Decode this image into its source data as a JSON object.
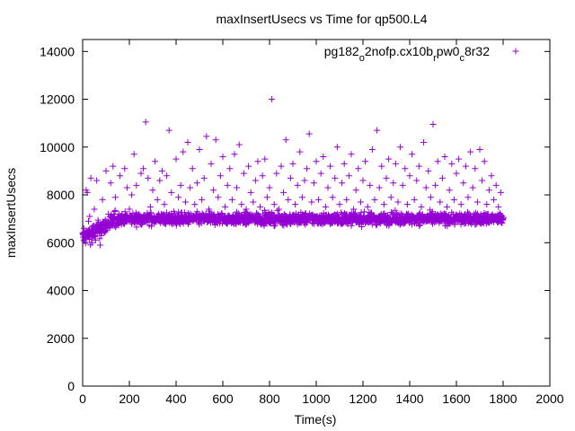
{
  "chart_data": {
    "type": "scatter",
    "title": "maxInsertUsecs vs Time for qp500.L4",
    "xlabel": "Time(s)",
    "ylabel": "maxInsertUsecs",
    "xlim": [
      0,
      2000
    ],
    "ylim": [
      0,
      14500
    ],
    "xticks": [
      0,
      200,
      400,
      600,
      800,
      1000,
      1200,
      1400,
      1600,
      1800,
      2000
    ],
    "yticks": [
      0,
      2000,
      4000,
      6000,
      8000,
      10000,
      12000,
      14000
    ],
    "grid": false,
    "legend_position": "top-right",
    "marker": "+",
    "color": "#9400d3",
    "series": [
      {
        "legend_parts": [
          {
            "text": "pg182",
            "sub": false
          },
          {
            "text": "o",
            "sub": true
          },
          {
            "text": "2nofp.cx10b",
            "sub": false
          },
          {
            "text": "r",
            "sub": true
          },
          {
            "text": "pw0",
            "sub": false
          },
          {
            "text": "c",
            "sub": true
          },
          {
            "text": "8r32",
            "sub": false
          }
        ],
        "x_range": [
          0,
          1800
        ],
        "points": [
          [
            0,
            6400
          ],
          [
            5,
            6600
          ],
          [
            10,
            6200
          ],
          [
            15,
            8200
          ],
          [
            20,
            8100
          ],
          [
            25,
            6900
          ],
          [
            30,
            7100
          ],
          [
            35,
            8700
          ],
          [
            40,
            6000
          ],
          [
            45,
            6300
          ],
          [
            50,
            7400
          ],
          [
            55,
            6100
          ],
          [
            60,
            8600
          ],
          [
            65,
            6500
          ],
          [
            70,
            6700
          ],
          [
            75,
            5900
          ],
          [
            80,
            6300
          ],
          [
            85,
            7800
          ],
          [
            90,
            6800
          ],
          [
            95,
            6500
          ],
          [
            100,
            9000
          ],
          [
            105,
            6700
          ],
          [
            110,
            7200
          ],
          [
            120,
            8500
          ],
          [
            130,
            9200
          ],
          [
            140,
            7900
          ],
          [
            150,
            7100
          ],
          [
            160,
            8800
          ],
          [
            170,
            7000
          ],
          [
            180,
            9100
          ],
          [
            190,
            8300
          ],
          [
            200,
            7400
          ],
          [
            210,
            8000
          ],
          [
            220,
            9700
          ],
          [
            230,
            8400
          ],
          [
            240,
            7200
          ],
          [
            250,
            8900
          ],
          [
            260,
            9100
          ],
          [
            270,
            11050
          ],
          [
            280,
            8700
          ],
          [
            290,
            7500
          ],
          [
            300,
            8200
          ],
          [
            310,
            9400
          ],
          [
            320,
            7800
          ],
          [
            330,
            8600
          ],
          [
            340,
            9000
          ],
          [
            350,
            7600
          ],
          [
            360,
            8800
          ],
          [
            370,
            10700
          ],
          [
            380,
            8100
          ],
          [
            390,
            7300
          ],
          [
            400,
            9500
          ],
          [
            410,
            7900
          ],
          [
            420,
            8400
          ],
          [
            430,
            9800
          ],
          [
            440,
            7700
          ],
          [
            450,
            10200
          ],
          [
            460,
            8300
          ],
          [
            470,
            9100
          ],
          [
            480,
            7600
          ],
          [
            490,
            8500
          ],
          [
            500,
            9900
          ],
          [
            510,
            7800
          ],
          [
            520,
            8700
          ],
          [
            530,
            10450
          ],
          [
            540,
            7400
          ],
          [
            550,
            9300
          ],
          [
            560,
            8200
          ],
          [
            570,
            10300
          ],
          [
            580,
            7900
          ],
          [
            590,
            8800
          ],
          [
            600,
            9600
          ],
          [
            610,
            7500
          ],
          [
            620,
            8400
          ],
          [
            630,
            9100
          ],
          [
            640,
            7800
          ],
          [
            650,
            9700
          ],
          [
            660,
            8300
          ],
          [
            670,
            10100
          ],
          [
            680,
            7600
          ],
          [
            690,
            8900
          ],
          [
            700,
            7400
          ],
          [
            710,
            9200
          ],
          [
            720,
            8100
          ],
          [
            730,
            7700
          ],
          [
            740,
            8600
          ],
          [
            750,
            9400
          ],
          [
            760,
            7500
          ],
          [
            770,
            8800
          ],
          [
            780,
            9500
          ],
          [
            790,
            7900
          ],
          [
            800,
            8300
          ],
          [
            810,
            12000
          ],
          [
            820,
            7600
          ],
          [
            830,
            8900
          ],
          [
            840,
            7400
          ],
          [
            850,
            9200
          ],
          [
            860,
            8100
          ],
          [
            870,
            10300
          ],
          [
            880,
            7800
          ],
          [
            890,
            8700
          ],
          [
            900,
            9300
          ],
          [
            910,
            7600
          ],
          [
            920,
            8400
          ],
          [
            930,
            9800
          ],
          [
            940,
            7900
          ],
          [
            950,
            8600
          ],
          [
            960,
            9100
          ],
          [
            970,
            10550
          ],
          [
            980,
            7700
          ],
          [
            990,
            8500
          ],
          [
            1000,
            9400
          ],
          [
            1010,
            7800
          ],
          [
            1020,
            8900
          ],
          [
            1030,
            9600
          ],
          [
            1040,
            7500
          ],
          [
            1050,
            8300
          ],
          [
            1060,
            9200
          ],
          [
            1070,
            7900
          ],
          [
            1080,
            8700
          ],
          [
            1090,
            10000
          ],
          [
            1100,
            7600
          ],
          [
            1110,
            8500
          ],
          [
            1120,
            9300
          ],
          [
            1130,
            7800
          ],
          [
            1140,
            8800
          ],
          [
            1150,
            9700
          ],
          [
            1160,
            7400
          ],
          [
            1170,
            8200
          ],
          [
            1180,
            9100
          ],
          [
            1190,
            7700
          ],
          [
            1200,
            8600
          ],
          [
            1210,
            9400
          ],
          [
            1220,
            7500
          ],
          [
            1230,
            8400
          ],
          [
            1240,
            9900
          ],
          [
            1250,
            7800
          ],
          [
            1260,
            10700
          ],
          [
            1270,
            8300
          ],
          [
            1280,
            9200
          ],
          [
            1290,
            7600
          ],
          [
            1300,
            8700
          ],
          [
            1310,
            9500
          ],
          [
            1320,
            7900
          ],
          [
            1330,
            8500
          ],
          [
            1340,
            9300
          ],
          [
            1350,
            7700
          ],
          [
            1360,
            10000
          ],
          [
            1370,
            8400
          ],
          [
            1380,
            9100
          ],
          [
            1390,
            7600
          ],
          [
            1400,
            8800
          ],
          [
            1410,
            9700
          ],
          [
            1420,
            7800
          ],
          [
            1430,
            8600
          ],
          [
            1440,
            9200
          ],
          [
            1450,
            7500
          ],
          [
            1460,
            10200
          ],
          [
            1470,
            8300
          ],
          [
            1480,
            9000
          ],
          [
            1490,
            7900
          ],
          [
            1500,
            10950
          ],
          [
            1510,
            8400
          ],
          [
            1520,
            9400
          ],
          [
            1530,
            7700
          ],
          [
            1540,
            8700
          ],
          [
            1550,
            9600
          ],
          [
            1560,
            7500
          ],
          [
            1570,
            8200
          ],
          [
            1580,
            9300
          ],
          [
            1590,
            7800
          ],
          [
            1600,
            8900
          ],
          [
            1610,
            9500
          ],
          [
            1620,
            7600
          ],
          [
            1630,
            8500
          ],
          [
            1640,
            9200
          ],
          [
            1650,
            7900
          ],
          [
            1660,
            9800
          ],
          [
            1670,
            8300
          ],
          [
            1680,
            9100
          ],
          [
            1690,
            7700
          ],
          [
            1700,
            9900
          ],
          [
            1710,
            8600
          ],
          [
            1720,
            9400
          ],
          [
            1730,
            7600
          ],
          [
            1740,
            8200
          ],
          [
            1750,
            8800
          ],
          [
            1760,
            7800
          ],
          [
            1770,
            8400
          ],
          [
            1780,
            7500
          ],
          [
            1790,
            8100
          ]
        ]
      }
    ]
  }
}
